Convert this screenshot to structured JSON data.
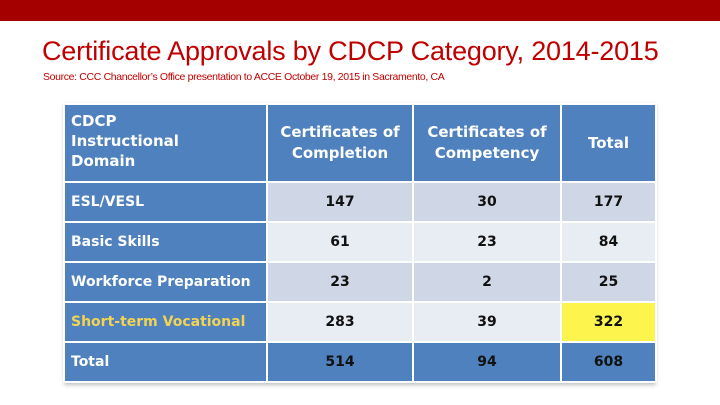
{
  "slide": {
    "title": "Certificate Approvals by CDCP Category, 2014-2015",
    "source": "Source: CCC Chancellor’s Office presentation to ACCE October 19, 2015 in Sacramento, CA"
  },
  "table": {
    "header": {
      "domain_line1": "CDCP",
      "domain_line2": "Instructional",
      "domain_line3": "Domain",
      "completion_line1": "Certificates of",
      "completion_line2": "Completion",
      "competency_line1": "Certificates of",
      "competency_line2": "Competency",
      "total": "Total"
    },
    "rows": [
      {
        "label": "ESL/VESL",
        "completion": "147",
        "competency": "30",
        "total": "177"
      },
      {
        "label": "Basic Skills",
        "completion": "61",
        "competency": "23",
        "total": "84"
      },
      {
        "label": "Workforce Preparation",
        "completion": "23",
        "competency": "2",
        "total": "25"
      },
      {
        "label": "Short-term Vocational",
        "completion": "283",
        "competency": "39",
        "total": "322"
      }
    ],
    "totals": {
      "label": "Total",
      "completion": "514",
      "competency": "94",
      "total": "608"
    }
  },
  "colors": {
    "top_bar": "#a50000",
    "title": "#c00000",
    "header_blue": "#4e81bd",
    "highlight_yellow": "#fdf44e",
    "highlight_label": "#f3d354"
  }
}
